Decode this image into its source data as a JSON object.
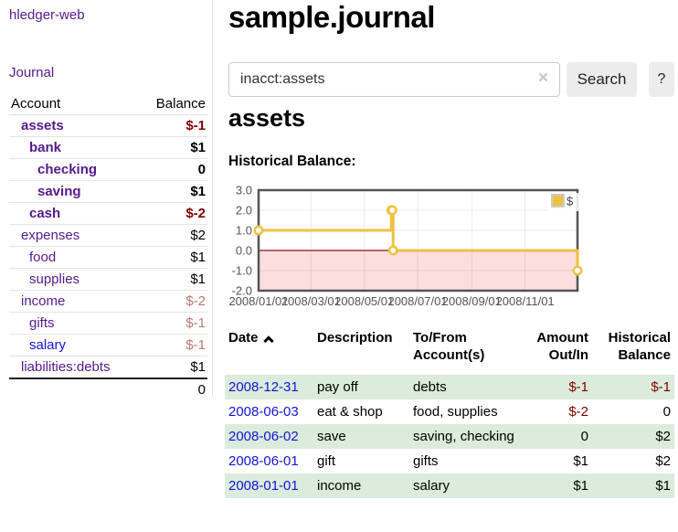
{
  "colors": {
    "purple_link": "#551a8b",
    "blue_link": "#1414d6",
    "negative_strong": "#7f0000",
    "negative_soft": "#bc7676",
    "row_stripe_green": "#dcecdc",
    "chart_line": "#edc240",
    "chart_negative_region": "#fcdede",
    "chart_zero_line": "#8f1212",
    "axis_text": "#545454",
    "border_gray": "#e0e0e0",
    "button_bg": "#ececec"
  },
  "sidebar": {
    "app_title": "hledger-web",
    "journal_link": "Journal",
    "accounts": {
      "header_account": "Account",
      "header_balance": "Balance",
      "rows": [
        {
          "name": "assets",
          "balance": "$-1",
          "indent": 1,
          "bold": true,
          "link_color": "purple",
          "balance_class": "neg-strong"
        },
        {
          "name": "bank",
          "balance": "$1",
          "indent": 2,
          "bold": true,
          "link_color": "purple",
          "balance_class": ""
        },
        {
          "name": "checking",
          "balance": "0",
          "indent": 3,
          "bold": true,
          "link_color": "purple",
          "balance_class": ""
        },
        {
          "name": "saving",
          "balance": "$1",
          "indent": 3,
          "bold": true,
          "link_color": "purple",
          "balance_class": ""
        },
        {
          "name": "cash",
          "balance": "$-2",
          "indent": 2,
          "bold": true,
          "link_color": "purple",
          "balance_class": "neg-strong"
        },
        {
          "name": "expenses",
          "balance": "$2",
          "indent": 1,
          "bold": false,
          "link_color": "purple",
          "balance_class": ""
        },
        {
          "name": "food",
          "balance": "$1",
          "indent": 2,
          "bold": false,
          "link_color": "purple",
          "balance_class": ""
        },
        {
          "name": "supplies",
          "balance": "$1",
          "indent": 2,
          "bold": false,
          "link_color": "purple",
          "balance_class": ""
        },
        {
          "name": "income",
          "balance": "$-2",
          "indent": 1,
          "bold": false,
          "link_color": "purple",
          "balance_class": "neg-soft"
        },
        {
          "name": "gifts",
          "balance": "$-1",
          "indent": 2,
          "bold": false,
          "link_color": "purple",
          "balance_class": "neg-soft"
        },
        {
          "name": "salary",
          "balance": "$-1",
          "indent": 2,
          "bold": false,
          "link_color": "blue",
          "balance_class": "neg-soft"
        },
        {
          "name": "liabilities:debts",
          "balance": "$1",
          "indent": 1,
          "bold": false,
          "link_color": "purple",
          "balance_class": ""
        }
      ],
      "total": "0"
    }
  },
  "main": {
    "page_title": "sample.journal",
    "search": {
      "value": "inacct:assets",
      "clear_icon": "×",
      "search_button": "Search",
      "help_button": "?"
    },
    "account_heading": "assets",
    "chart_title": "Historical Balance:"
  },
  "chart_data": {
    "type": "line",
    "style": "step",
    "title": "Historical Balance",
    "series": [
      {
        "name": "$",
        "color": "#edc240",
        "points": [
          [
            "2008-01-01",
            1
          ],
          [
            "2008-06-01",
            2
          ],
          [
            "2008-06-02",
            2
          ],
          [
            "2008-06-03",
            0
          ],
          [
            "2008-12-31",
            -1
          ]
        ]
      }
    ],
    "x_range": [
      "2008-01-01",
      "2008-12-31"
    ],
    "y_range": [
      -2,
      3
    ],
    "x_ticks": [
      "2008/01/01",
      "2008/03/01",
      "2008/05/01",
      "2008/07/01",
      "2008/09/01",
      "2008/11/01"
    ],
    "y_ticks": [
      3.0,
      2.0,
      1.0,
      0.0,
      -1.0,
      -2.0
    ],
    "legend": {
      "label": "$",
      "position": "top-right"
    },
    "grid": true,
    "negative_region_highlighted": true,
    "negative_fill": "#fcdede",
    "zero_line_color": "#8f1212"
  },
  "register": {
    "headers": {
      "date": "Date",
      "sort": "ascending",
      "description": "Description",
      "accounts": "To/From Account(s)",
      "amount": "Amount Out/In",
      "balance": "Historical Balance"
    },
    "rows": [
      {
        "date": "2008-12-31",
        "description": "pay off",
        "accounts": "debts",
        "amount": "$-1",
        "amount_neg": true,
        "balance": "$-1",
        "balance_neg": true
      },
      {
        "date": "2008-06-03",
        "description": "eat & shop",
        "accounts": "food, supplies",
        "amount": "$-2",
        "amount_neg": true,
        "balance": "0",
        "balance_neg": false
      },
      {
        "date": "2008-06-02",
        "description": "save",
        "accounts": "saving, checking",
        "amount": "0",
        "amount_neg": false,
        "balance": "$2",
        "balance_neg": false
      },
      {
        "date": "2008-06-01",
        "description": "gift",
        "accounts": "gifts",
        "amount": "$1",
        "amount_neg": false,
        "balance": "$2",
        "balance_neg": false
      },
      {
        "date": "2008-01-01",
        "description": "income",
        "accounts": "salary",
        "amount": "$1",
        "amount_neg": false,
        "balance": "$1",
        "balance_neg": false
      }
    ]
  }
}
